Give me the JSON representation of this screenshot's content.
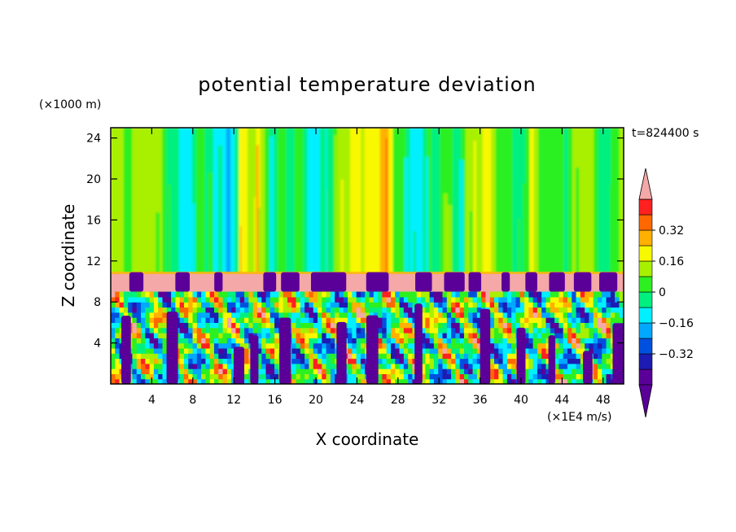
{
  "chart_data": {
    "type": "heatmap",
    "title": "potential temperature deviation",
    "xlabel": "X coordinate",
    "ylabel": "Z coordinate",
    "x_unit": "(×1E4 m/s)",
    "y_unit": "(×1000 m)",
    "time_label": "t=824400 s",
    "xlim": [
      0,
      50
    ],
    "ylim": [
      0,
      25
    ],
    "x_ticks": [
      4,
      8,
      12,
      16,
      20,
      24,
      28,
      32,
      36,
      40,
      44,
      48
    ],
    "y_ticks": [
      4,
      8,
      12,
      16,
      20,
      24
    ],
    "x_tick_labels": [
      "4",
      "8",
      "12",
      "16",
      "20",
      "24",
      "28",
      "32",
      "36",
      "40",
      "44",
      "48"
    ],
    "y_tick_labels": [
      "4",
      "8",
      "12",
      "16",
      "20",
      "24"
    ],
    "colorbar": {
      "levels": [
        -0.48,
        -0.4,
        -0.32,
        -0.24,
        -0.16,
        -0.08,
        0,
        0.08,
        0.16,
        0.24,
        0.32,
        0.4
      ],
      "tick_values": [
        0.32,
        0.16,
        0,
        -0.16,
        -0.32
      ],
      "tick_labels": [
        "0.32",
        "0.16",
        "0",
        "−0.16",
        "−0.32"
      ],
      "colors": [
        "#5a0099",
        "#1c1cb4",
        "#0050e0",
        "#00a8ff",
        "#00f0ff",
        "#00f080",
        "#2cf020",
        "#a8f000",
        "#f8f800",
        "#ffb000",
        "#ff6800",
        "#ff2020"
      ],
      "over_color": "#f4a8a8",
      "under_color": "#5a0099"
    },
    "regions": {
      "upper_layer_z": [
        10.8,
        25
      ],
      "upper_layer_value_range": [
        -0.16,
        0.24
      ],
      "tropopause_band_z": [
        9.0,
        10.8
      ],
      "tropopause_band_value": "> 0.40",
      "lower_layer_z": [
        0,
        9.0
      ],
      "lower_layer_value_range": [
        -0.48,
        0.4
      ]
    }
  }
}
